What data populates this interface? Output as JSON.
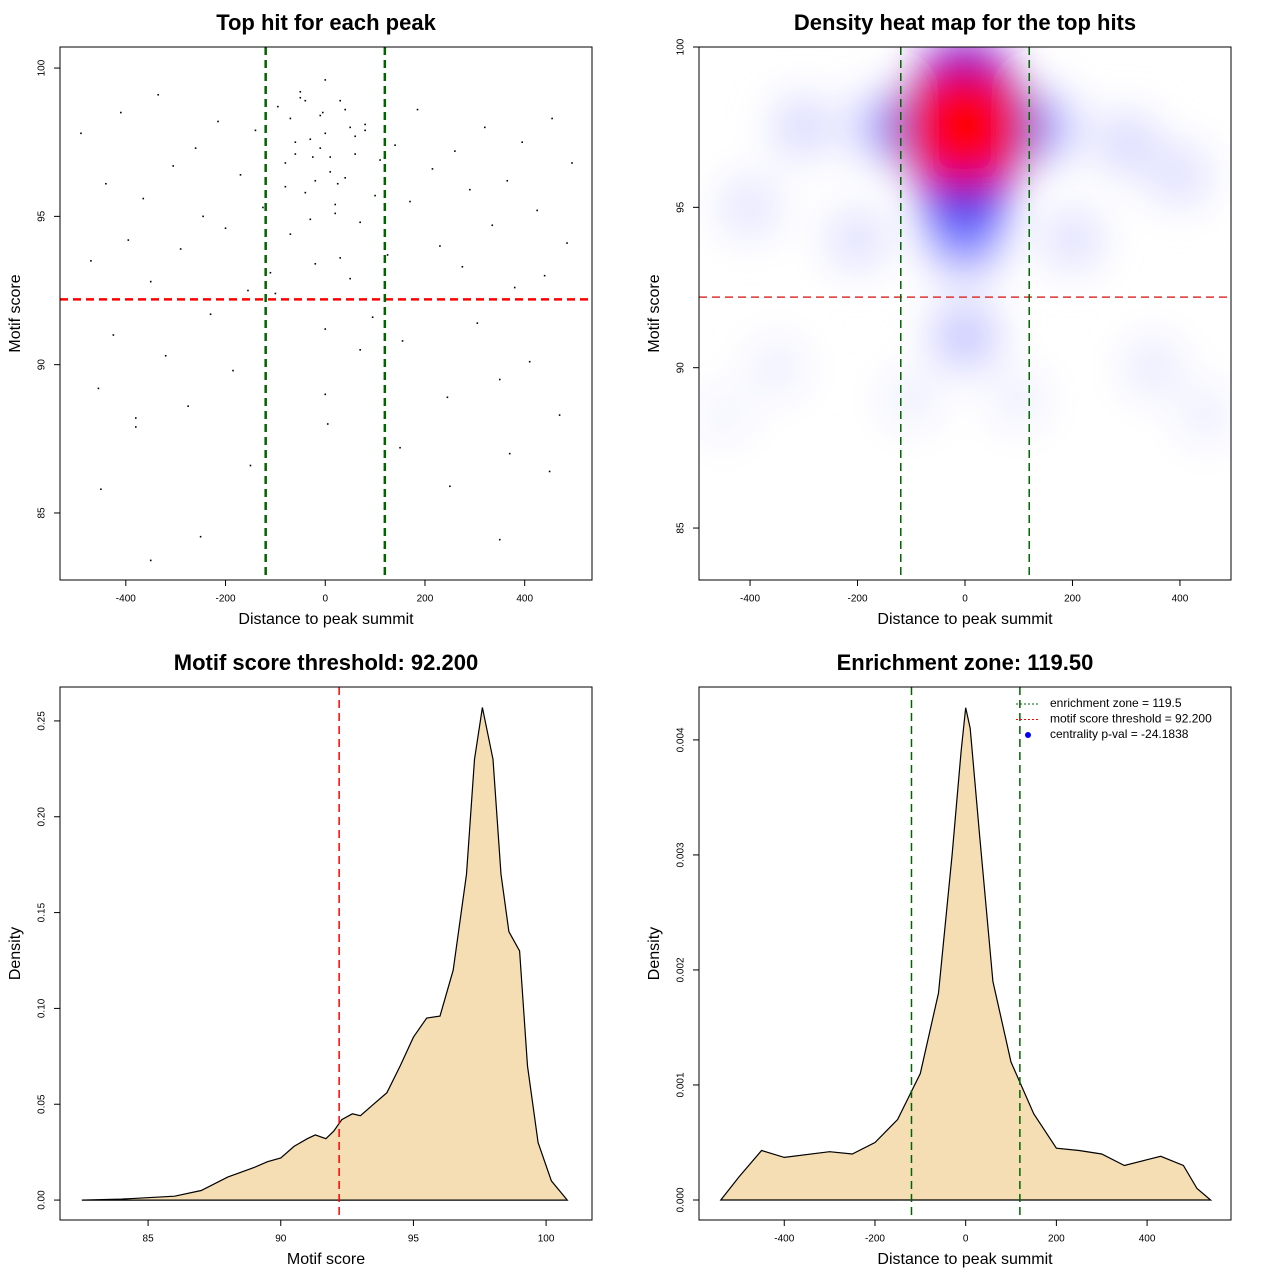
{
  "chart_data": [
    {
      "type": "scatter",
      "title": "Top hit for each peak",
      "x_label": "Distance to peak summit",
      "y_label": "Motif score",
      "xlim": [
        -532,
        535
      ],
      "ylim": [
        82.74,
        100.71
      ],
      "xticks": [
        -400,
        -200,
        0,
        200,
        400
      ],
      "yticks": [
        85,
        90,
        95,
        100
      ],
      "color": "#000000",
      "reference_lines": [
        {
          "axis": "y",
          "value": 92.2,
          "color": "#ff0000"
        },
        {
          "axis": "x",
          "value": -119.5,
          "color": "#006400"
        },
        {
          "axis": "x",
          "value": 119.5,
          "color": "#006400"
        }
      ],
      "x": [
        -490,
        -470,
        -455,
        -440,
        -425,
        -410,
        -395,
        -380,
        -365,
        -350,
        -335,
        -320,
        -305,
        -290,
        -275,
        -260,
        -245,
        -230,
        -215,
        -200,
        -185,
        -170,
        -155,
        -140,
        -125,
        -110,
        -95,
        -80,
        -70,
        -60,
        -50,
        -40,
        -30,
        -20,
        -10,
        0,
        10,
        20,
        30,
        40,
        50,
        60,
        70,
        80,
        95,
        110,
        125,
        140,
        155,
        170,
        185,
        200,
        215,
        230,
        245,
        260,
        275,
        290,
        305,
        320,
        335,
        350,
        365,
        380,
        395,
        410,
        425,
        440,
        455,
        470,
        485,
        495,
        -60,
        -40,
        -20,
        0,
        20,
        40,
        60,
        -50,
        -10,
        10,
        50,
        -30,
        30,
        0,
        -80,
        80,
        -100,
        100,
        -70,
        70,
        0,
        -25,
        25,
        -5,
        5,
        -150,
        150,
        -250,
        250,
        -350,
        350,
        -450,
        450,
        -380,
        370
      ],
      "y": [
        97.8,
        93.5,
        89.2,
        96.1,
        91.0,
        98.5,
        94.2,
        87.9,
        95.6,
        92.8,
        99.1,
        90.3,
        96.7,
        93.9,
        88.6,
        97.3,
        95.0,
        91.7,
        98.2,
        94.6,
        89.8,
        96.4,
        92.5,
        97.9,
        95.3,
        93.1,
        98.7,
        96.0,
        94.4,
        97.1,
        99.2,
        95.8,
        97.6,
        93.4,
        98.4,
        99.6,
        97.0,
        95.1,
        98.9,
        96.3,
        92.9,
        97.7,
        94.8,
        98.1,
        91.6,
        96.9,
        93.7,
        97.4,
        90.8,
        95.5,
        98.6,
        92.2,
        96.6,
        94.0,
        88.9,
        97.2,
        93.3,
        95.9,
        91.4,
        98.0,
        94.7,
        89.5,
        96.2,
        92.6,
        97.5,
        90.1,
        95.2,
        93.0,
        98.3,
        88.3,
        94.1,
        96.8,
        97.5,
        98.9,
        96.2,
        97.8,
        95.4,
        98.6,
        97.1,
        99.0,
        97.3,
        96.5,
        98.0,
        94.9,
        93.6,
        91.2,
        96.8,
        97.9,
        92.4,
        95.7,
        98.3,
        90.5,
        89.0,
        97.0,
        96.1,
        98.5,
        88.0,
        86.6,
        87.2,
        84.2,
        85.9,
        83.4,
        84.1,
        85.8,
        86.4,
        88.2,
        87.0
      ]
    },
    {
      "type": "heatmap",
      "title": "Density heat map for the top hits",
      "x_label": "Distance to peak summit",
      "y_label": "Motif score",
      "xlim": [
        -495,
        495
      ],
      "ylim": [
        83.38,
        100
      ],
      "xticks": [
        -400,
        -200,
        0,
        200,
        400
      ],
      "yticks": [
        85,
        90,
        95,
        100
      ],
      "colorscale": [
        "#ffffff",
        "#0000ff",
        "#ff0000"
      ],
      "reference_lines": [
        {
          "axis": "y",
          "value": 92.2,
          "color": "#dd3333"
        },
        {
          "axis": "x",
          "value": -119.5,
          "color": "#006400"
        },
        {
          "axis": "x",
          "value": 119.5,
          "color": "#006400"
        }
      ],
      "x": [
        -450,
        450,
        -350,
        350,
        -100,
        100,
        -400,
        -200,
        200,
        400,
        -300,
        300,
        0,
        -150,
        150,
        0,
        0,
        0,
        -70,
        70,
        0,
        0,
        -30,
        30,
        0,
        0
      ],
      "y": [
        88.5,
        88.5,
        90,
        90,
        89,
        89,
        95,
        94,
        94,
        96,
        97.5,
        97,
        91,
        97.5,
        97.5,
        94,
        95,
        96,
        97.5,
        97.5,
        98.8,
        96.6,
        97.5,
        97.5,
        98.2,
        97.5
      ],
      "z": [
        0.03,
        0.04,
        0.04,
        0.05,
        0.04,
        0.04,
        0.06,
        0.07,
        0.07,
        0.07,
        0.08,
        0.08,
        0.12,
        0.12,
        0.12,
        0.18,
        0.3,
        0.45,
        0.4,
        0.4,
        0.5,
        0.6,
        0.7,
        0.7,
        0.7,
        1.0
      ]
    },
    {
      "type": "density",
      "title": "Motif score threshold: 92.200",
      "x_label": "Motif score",
      "y_label": "Density",
      "xlim": [
        81.68,
        101.73
      ],
      "ylim": [
        -0.0104,
        0.2677
      ],
      "xticks": [
        85,
        90,
        95,
        100
      ],
      "yticks": [
        {
          "value": 0,
          "label": "0.00"
        },
        0.05,
        {
          "value": 0.1,
          "label": "0.10"
        },
        0.15,
        {
          "value": 0.2,
          "label": "0.20"
        },
        0.25
      ],
      "color": "#f5deb3",
      "reference_lines": [
        {
          "axis": "x",
          "value": 92.2,
          "color": "#ff0000"
        }
      ],
      "x": [
        82.5,
        84,
        86,
        87,
        88,
        89,
        89.5,
        90,
        90.5,
        91,
        91.3,
        91.7,
        92,
        92.3,
        92.7,
        93,
        93.5,
        94,
        94.5,
        95,
        95.5,
        96,
        96.5,
        97,
        97.3,
        97.6,
        98,
        98.3,
        98.6,
        99,
        99.3,
        99.7,
        100.2,
        100.8
      ],
      "values": [
        0,
        0.0005,
        0.002,
        0.005,
        0.012,
        0.017,
        0.02,
        0.022,
        0.028,
        0.032,
        0.034,
        0.032,
        0.036,
        0.042,
        0.045,
        0.044,
        0.05,
        0.056,
        0.07,
        0.085,
        0.095,
        0.096,
        0.12,
        0.17,
        0.23,
        0.257,
        0.23,
        0.17,
        0.14,
        0.13,
        0.07,
        0.03,
        0.01,
        0
      ]
    },
    {
      "type": "density",
      "title": "Enrichment zone: 119.50",
      "x_label": "Distance to peak summit",
      "y_label": "Density",
      "xlim": [
        -588,
        585
      ],
      "ylim": [
        -0.000174,
        0.00446
      ],
      "xticks": [
        -400,
        -200,
        0,
        200,
        400
      ],
      "yticks": [
        {
          "value": 0,
          "label": "0.000"
        },
        0.001,
        0.002,
        0.003,
        0.004
      ],
      "color": "#f5deb3",
      "reference_lines": [
        {
          "axis": "x",
          "value": -119.5,
          "color": "#006400"
        },
        {
          "axis": "x",
          "value": 119.5,
          "color": "#006400"
        }
      ],
      "legend_position": "top-right",
      "legend": [
        {
          "name": "enrichment zone = 119.5",
          "color": "#006400",
          "style": "dotted"
        },
        {
          "name": "motif score threshold = 92.200",
          "color": "#ff0000",
          "style": "dotted"
        },
        {
          "name": "centrality p-val = -24.1838",
          "color": "#0000ff",
          "style": "point"
        }
      ],
      "x": [
        -540,
        -500,
        -450,
        -400,
        -300,
        -250,
        -200,
        -150,
        -100,
        -60,
        -30,
        -10,
        0,
        10,
        30,
        60,
        100,
        150,
        200,
        250,
        300,
        350,
        400,
        430,
        480,
        510,
        540
      ],
      "values": [
        0,
        0.0002,
        0.00043,
        0.00037,
        0.00042,
        0.0004,
        0.0005,
        0.0007,
        0.0011,
        0.0018,
        0.003,
        0.0039,
        0.00428,
        0.0041,
        0.0032,
        0.0019,
        0.0012,
        0.00075,
        0.00045,
        0.00043,
        0.0004,
        0.0003,
        0.00035,
        0.00038,
        0.0003,
        0.0001,
        0
      ]
    }
  ]
}
